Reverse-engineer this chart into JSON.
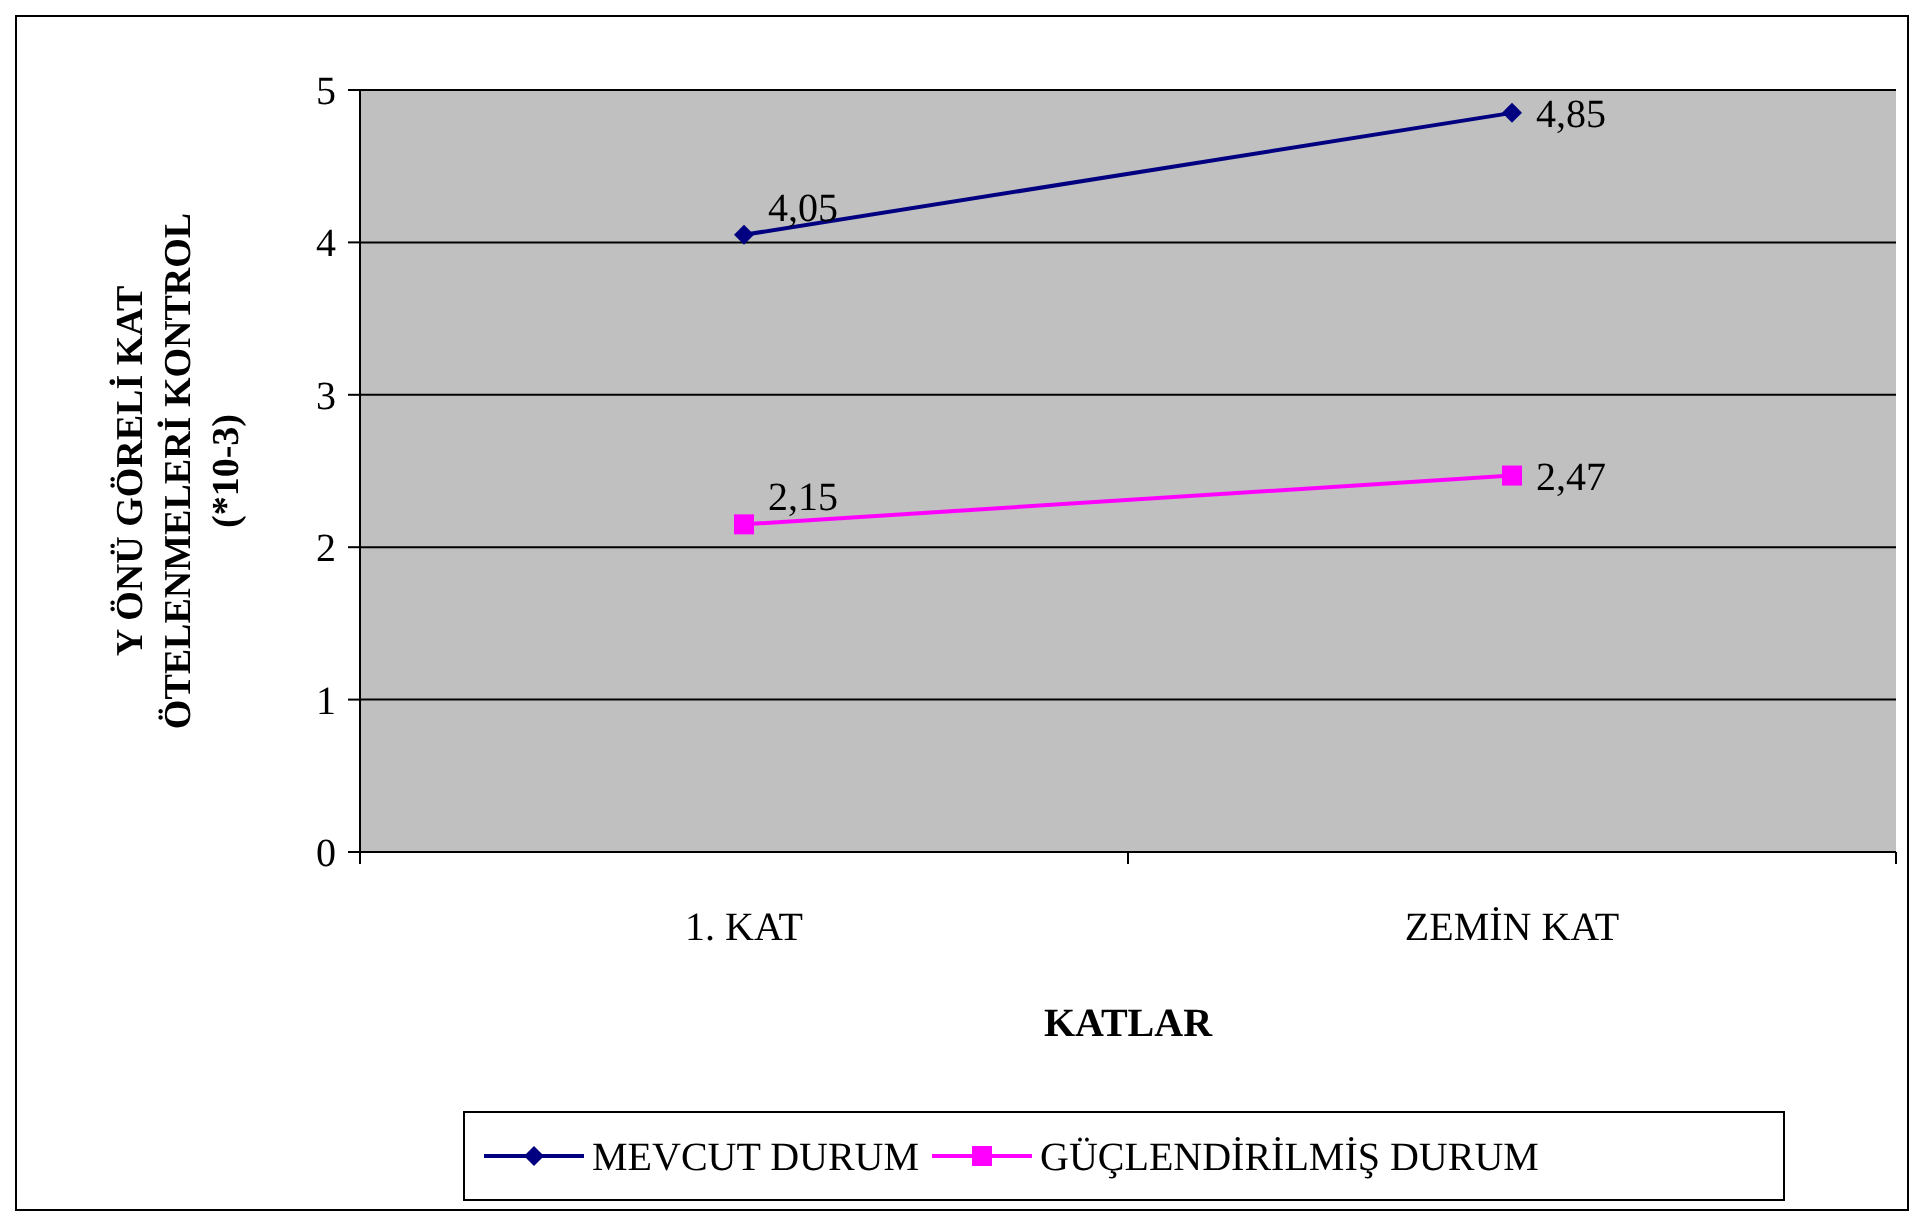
{
  "chart_data": {
    "type": "line",
    "xlabel": "KATLAR",
    "ylabel": "Y ÖNÜ GÖRELİ KAT\nÖTELENMELERİ KONTROL\n(*10-3)",
    "categories": [
      "1. KAT",
      "ZEMİN KAT"
    ],
    "series": [
      {
        "name": "MEVCUT DURUM",
        "color": "#000080",
        "values": [
          4.05,
          4.85
        ],
        "value_labels": [
          "4,05",
          "4,85"
        ],
        "marker": "diamond"
      },
      {
        "name": "GÜÇLENDİRİLMİŞ DURUM",
        "color": "#ff00ff",
        "values": [
          2.15,
          2.47
        ],
        "value_labels": [
          "2,15",
          "2,47"
        ],
        "marker": "square"
      }
    ],
    "ylim": [
      0,
      5
    ],
    "yticks": [
      0,
      1,
      2,
      3,
      4,
      5
    ],
    "grid": "y",
    "legend": "bottom"
  }
}
